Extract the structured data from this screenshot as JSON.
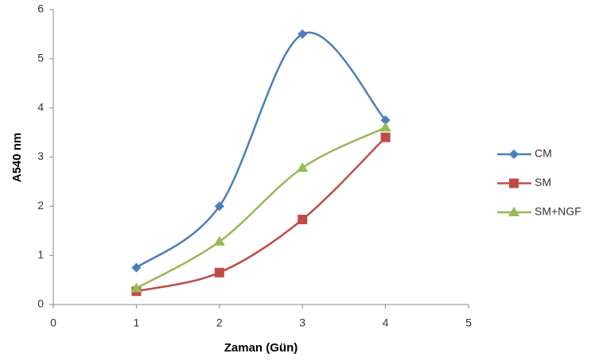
{
  "chart_data": {
    "type": "line",
    "x_label": "Zaman (Gün)",
    "y_label": "A540 nm",
    "x": [
      1,
      2,
      3,
      4
    ],
    "series": [
      {
        "name": "CM",
        "color": "#4a7ebb",
        "marker": "diamond",
        "values": [
          0.75,
          2.0,
          5.5,
          3.75
        ]
      },
      {
        "name": "SM",
        "color": "#be4b48",
        "marker": "square",
        "values": [
          0.27,
          0.65,
          1.73,
          3.4
        ]
      },
      {
        "name": "SM+NGF",
        "color": "#98b954",
        "marker": "triangle",
        "values": [
          0.33,
          1.28,
          2.78,
          3.6
        ]
      }
    ],
    "xlim": [
      0,
      5
    ],
    "xticks": [
      0,
      1,
      2,
      3,
      4,
      5
    ],
    "ylim": [
      0,
      6
    ],
    "yticks": [
      0,
      1,
      2,
      3,
      4,
      5,
      6
    ],
    "smooth": true,
    "grid": false,
    "legend": "right"
  }
}
